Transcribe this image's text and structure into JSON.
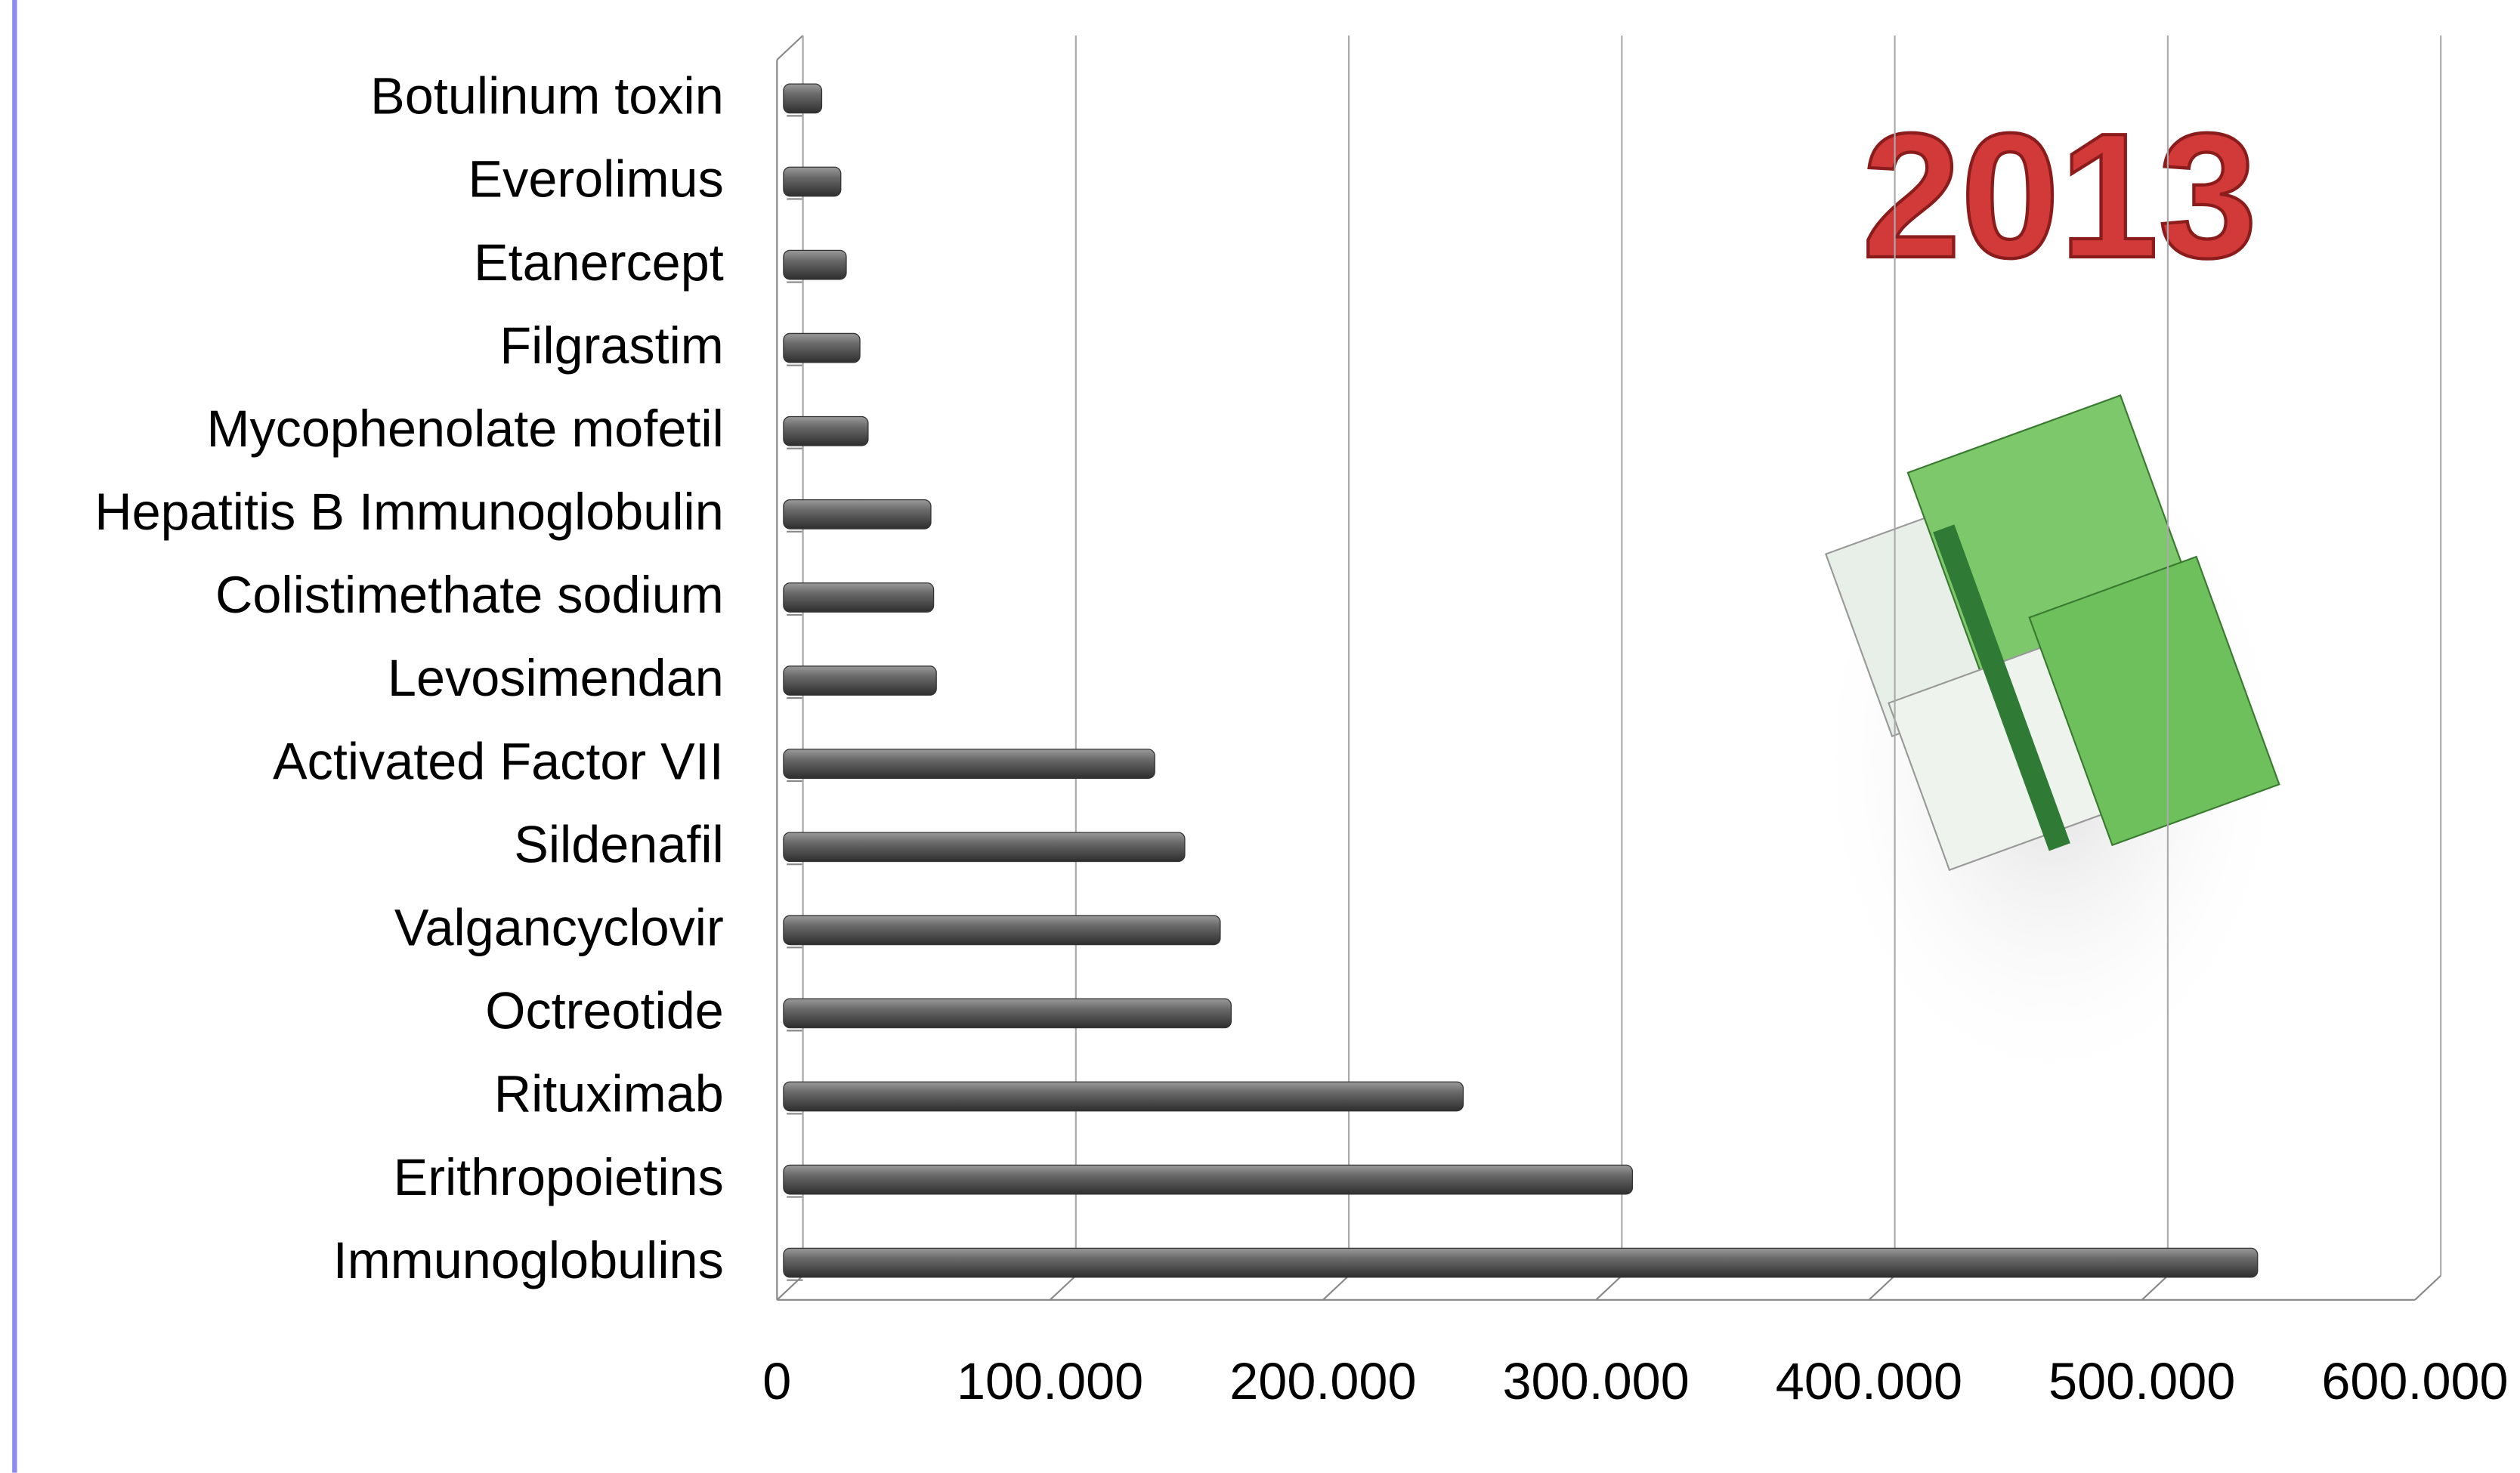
{
  "chart_data": {
    "type": "bar",
    "orientation": "horizontal",
    "annotation": "2013",
    "categories": [
      "Botulinum toxin",
      "Everolimus",
      "Etanercept",
      "Filgrastim",
      "Mycophenolate mofetil",
      "Hepatitis B Immunoglobulin",
      "Colistimethate sodium",
      "Levosimendan",
      "Activated Factor VII",
      "Sildenafil",
      "Valgancyclovir",
      "Octreotide",
      "Rituximab",
      "Erithropoietins",
      "Immunoglobulins"
    ],
    "values": [
      14000,
      21000,
      23000,
      28000,
      31000,
      54000,
      55000,
      56000,
      136000,
      147000,
      160000,
      164000,
      249000,
      311000,
      540000
    ],
    "color": "#555555",
    "xlim": [
      0,
      600000
    ],
    "xticks": [
      0,
      {
        "value": 100000,
        "label": "100.000"
      },
      {
        "value": 200000,
        "label": "200.000"
      },
      {
        "value": 300000,
        "label": "300.000"
      },
      {
        "value": 400000,
        "label": "400.000"
      },
      {
        "value": 500000,
        "label": "500.000"
      },
      {
        "value": 600000,
        "label": "600.000"
      }
    ],
    "grid": true
  }
}
